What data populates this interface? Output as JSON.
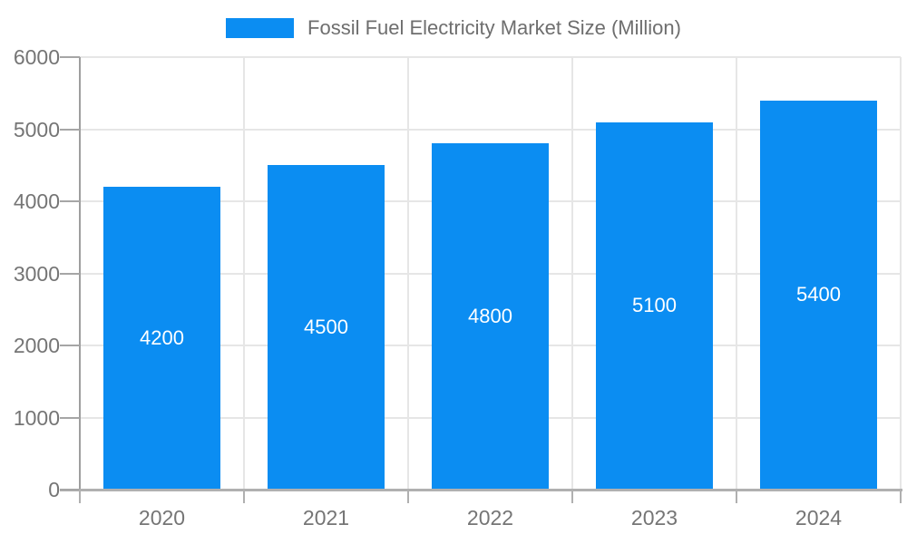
{
  "legend": {
    "label": "Fossil Fuel Electricity Market Size (Million)"
  },
  "chart_data": {
    "type": "bar",
    "title": "Fossil Fuel Electricity Market Size (Million)",
    "categories": [
      "2020",
      "2021",
      "2022",
      "2023",
      "2024"
    ],
    "values": [
      4200,
      4500,
      4800,
      5100,
      5400
    ],
    "value_labels": [
      "4200",
      "4500",
      "4800",
      "5100",
      "5400"
    ],
    "ytick_labels": [
      "0",
      "1000",
      "2000",
      "3000",
      "4000",
      "5000",
      "6000"
    ],
    "yticks": [
      0,
      1000,
      2000,
      3000,
      4000,
      5000,
      6000
    ],
    "ylim": [
      0,
      6000
    ],
    "xlabel": "",
    "ylabel": "",
    "grid": true,
    "legend_position": "top",
    "colors": {
      "bar": "#0b8df2",
      "value_label": "#ffffff",
      "axis_text": "#757575",
      "legend_text": "#6e6e6e",
      "gridline": "#e6e6e6",
      "axis_line": "#9e9e9e",
      "baseline": "#b0b0b0"
    }
  }
}
